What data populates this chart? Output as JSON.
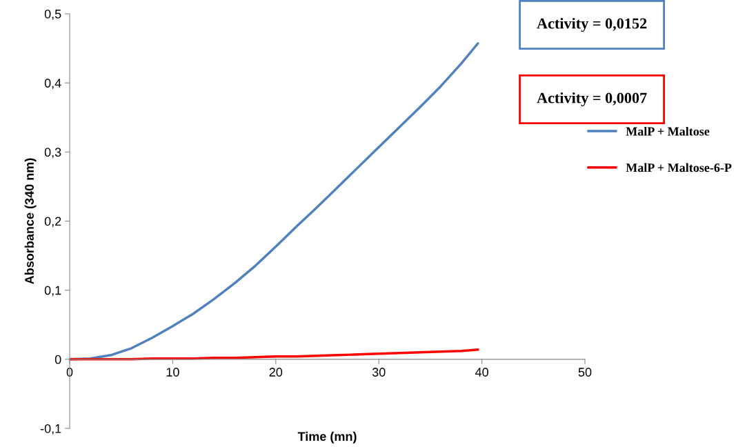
{
  "chart_data": {
    "type": "line",
    "xlabel": "Time (mn)",
    "ylabel": "Absorbance (340 nm)",
    "xlim": [
      0,
      50
    ],
    "xticks": [
      0,
      10,
      20,
      30,
      40,
      50
    ],
    "ylim": [
      -0.1,
      0.5
    ],
    "yticks": [
      {
        "value": -0.1,
        "label": "-0,1"
      },
      0,
      {
        "value": 0.1,
        "label": "0,1"
      },
      {
        "value": 0.2,
        "label": "0,2"
      },
      {
        "value": 0.3,
        "label": "0,3"
      },
      {
        "value": 0.4,
        "label": "0,4"
      },
      {
        "value": 0.5,
        "label": "0,5"
      }
    ],
    "x": [
      0,
      2,
      4,
      6,
      8,
      10,
      12,
      14,
      16,
      18,
      20,
      22,
      24,
      26,
      28,
      30,
      32,
      34,
      36,
      38,
      39.6
    ],
    "series": [
      {
        "name": "MalP + Maltose",
        "color": "#4f81bd",
        "values": [
          0,
          0.001,
          0.006,
          0.016,
          0.031,
          0.048,
          0.066,
          0.087,
          0.11,
          0.135,
          0.163,
          0.192,
          0.22,
          0.249,
          0.278,
          0.307,
          0.336,
          0.365,
          0.395,
          0.428,
          0.457
        ]
      },
      {
        "name": "MalP + Maltose-6-P",
        "color": "#ff0000",
        "values": [
          0,
          0,
          0,
          0,
          0.001,
          0.001,
          0.001,
          0.002,
          0.002,
          0.003,
          0.004,
          0.004,
          0.005,
          0.006,
          0.007,
          0.008,
          0.009,
          0.01,
          0.011,
          0.012,
          0.014
        ]
      }
    ],
    "annotations": [
      "Activity = 0,0152",
      "Activity = 0,0007"
    ],
    "legend": "right",
    "grid": false,
    "marker": "none",
    "line_style": "solid"
  }
}
